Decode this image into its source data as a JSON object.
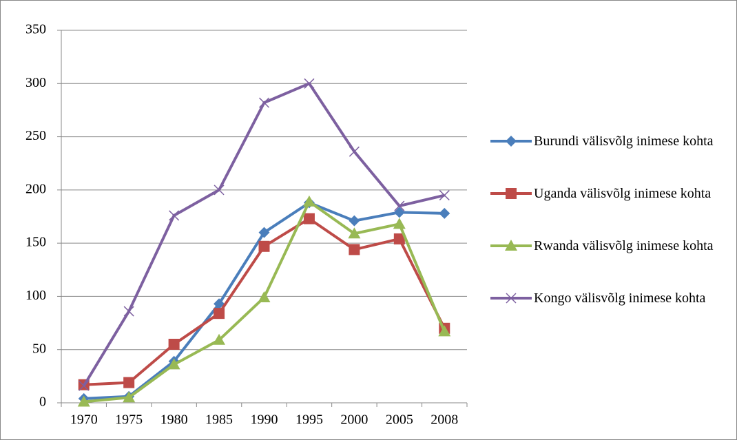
{
  "chart_data": {
    "type": "line",
    "categories": [
      "1970",
      "1975",
      "1980",
      "1985",
      "1990",
      "1995",
      "2000",
      "2005",
      "2008"
    ],
    "series": [
      {
        "name": "Burundi välisvõlg inimese kohta",
        "color": "#4a7ebb",
        "marker": "diamond",
        "values": [
          4,
          6,
          39,
          93,
          160,
          188,
          171,
          179,
          178
        ]
      },
      {
        "name": "Uganda välisvõlg inimese kohta",
        "color": "#be4b48",
        "marker": "square",
        "values": [
          17,
          19,
          55,
          84,
          147,
          173,
          144,
          154,
          70
        ]
      },
      {
        "name": "Rwanda välisvõlg inimese kohta",
        "color": "#98b954",
        "marker": "triangle",
        "values": [
          1,
          5,
          36,
          59,
          99,
          189,
          159,
          168,
          67
        ]
      },
      {
        "name": "Kongo välisvõlg inimese kohta",
        "color": "#7d60a0",
        "marker": "x",
        "values": [
          16,
          86,
          176,
          200,
          282,
          300,
          236,
          185,
          195
        ]
      }
    ],
    "ylim": [
      0,
      350
    ],
    "yticks": [
      0,
      50,
      100,
      150,
      200,
      250,
      300,
      350
    ],
    "grid": true,
    "legend": "right"
  }
}
